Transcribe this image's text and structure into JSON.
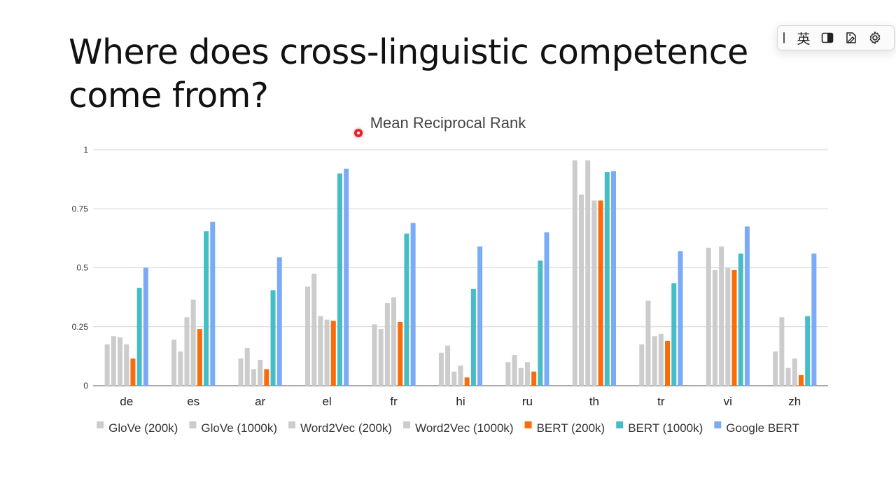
{
  "slide": {
    "title_line1": "Where does cross-linguistic competence",
    "title_line2": "come from?"
  },
  "ime_toolbar": {
    "language_label": "英",
    "icons": [
      "grip-icon",
      "layout-toggle-icon",
      "dictionary-icon",
      "gear-icon"
    ]
  },
  "chart_data": {
    "type": "bar",
    "title": "Mean Reciprocal Rank",
    "xlabel": "",
    "ylabel": "",
    "ylim": [
      0,
      1
    ],
    "yticks": [
      0,
      0.25,
      0.5,
      0.75,
      1
    ],
    "ytick_labels": [
      "0",
      "0.25",
      "0.5",
      "0.75",
      "1"
    ],
    "grid": true,
    "legend_position": "bottom",
    "categories": [
      "de",
      "es",
      "ar",
      "el",
      "fr",
      "hi",
      "ru",
      "th",
      "tr",
      "vi",
      "zh"
    ],
    "series": [
      {
        "name": "GloVe (200k)",
        "color": "#cccccc",
        "values": [
          0.175,
          0.195,
          0.115,
          0.42,
          0.26,
          0.14,
          0.1,
          0.955,
          0.175,
          0.585,
          0.145
        ]
      },
      {
        "name": "GloVe (1000k)",
        "color": "#cccccc",
        "values": [
          0.21,
          0.145,
          0.16,
          0.475,
          0.24,
          0.17,
          0.13,
          0.81,
          0.36,
          0.49,
          0.29
        ]
      },
      {
        "name": "Word2Vec (200k)",
        "color": "#cccccc",
        "values": [
          0.205,
          0.29,
          0.07,
          0.295,
          0.35,
          0.06,
          0.075,
          0.955,
          0.21,
          0.59,
          0.075
        ]
      },
      {
        "name": "Word2Vec (1000k)",
        "color": "#cccccc",
        "values": [
          0.175,
          0.365,
          0.11,
          0.28,
          0.375,
          0.085,
          0.1,
          0.785,
          0.22,
          0.5,
          0.115
        ]
      },
      {
        "name": "BERT (200k)",
        "color": "#fa6b0b",
        "values": [
          0.115,
          0.24,
          0.07,
          0.275,
          0.27,
          0.035,
          0.06,
          0.785,
          0.19,
          0.49,
          0.045
        ]
      },
      {
        "name": "BERT (1000k)",
        "color": "#46bdc6",
        "values": [
          0.415,
          0.655,
          0.405,
          0.9,
          0.645,
          0.41,
          0.53,
          0.905,
          0.435,
          0.56,
          0.295
        ]
      },
      {
        "name": "Google BERT",
        "color": "#7baaf7",
        "values": [
          0.5,
          0.695,
          0.545,
          0.92,
          0.69,
          0.59,
          0.65,
          0.91,
          0.57,
          0.675,
          0.56
        ]
      }
    ]
  }
}
